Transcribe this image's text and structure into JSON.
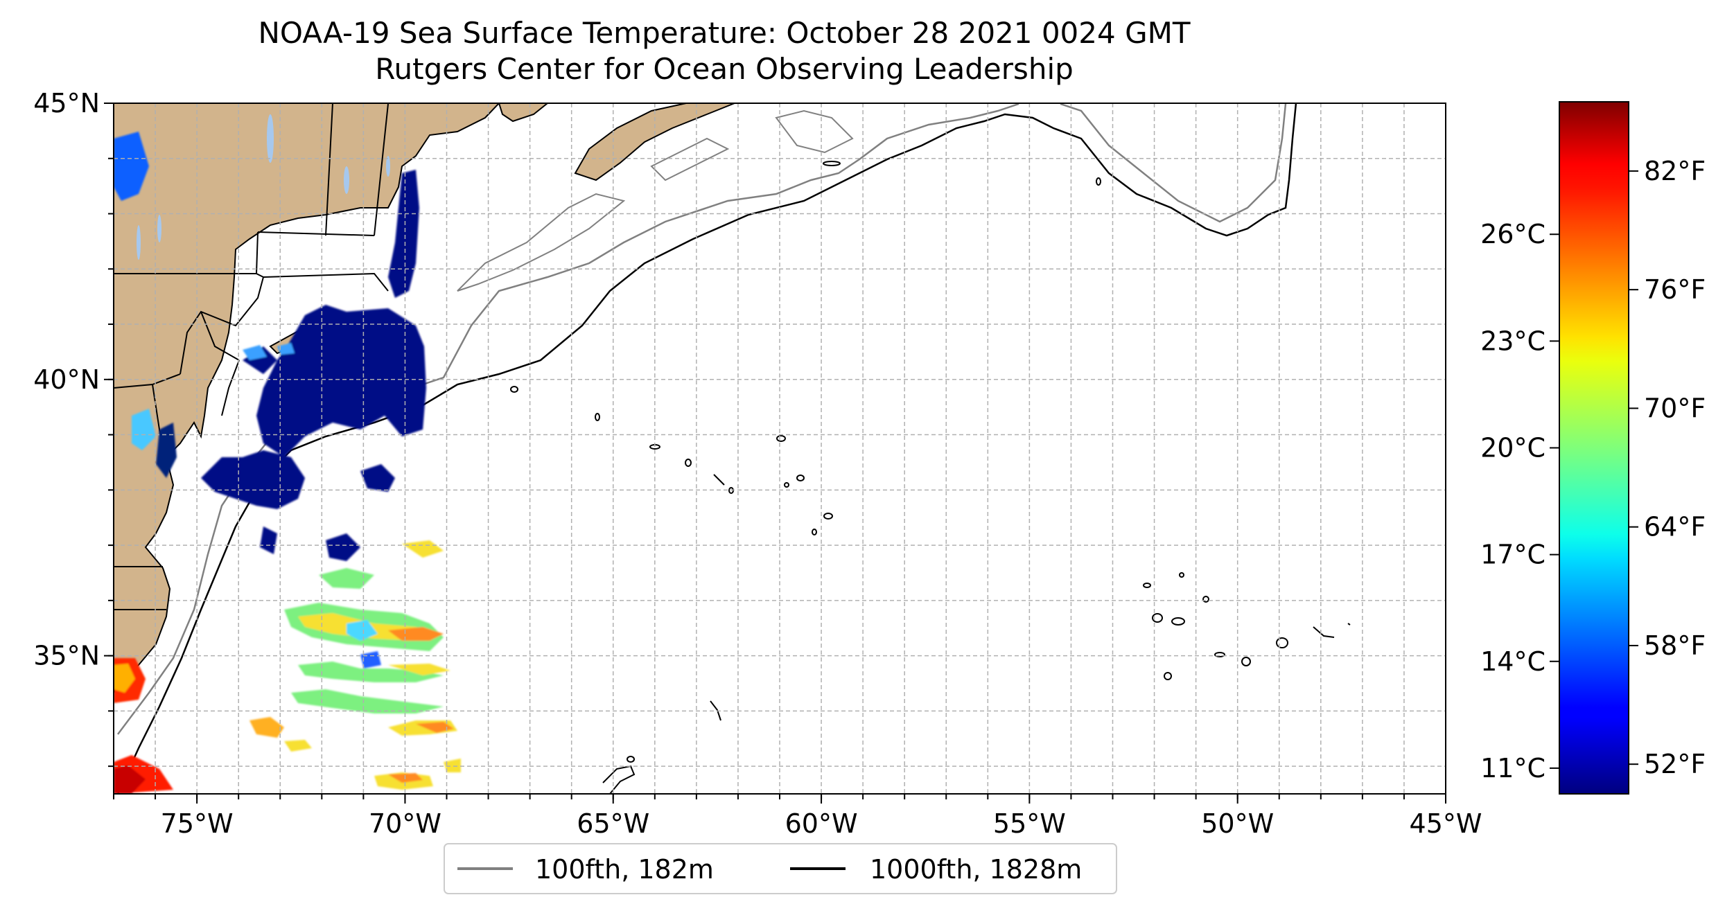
{
  "title": {
    "line1": "NOAA-19 Sea Surface Temperature: October 28 2021 0024 GMT",
    "line2": "Rutgers Center for Ocean Observing Leadership"
  },
  "map": {
    "lon_range": [
      -77,
      -45
    ],
    "lat_range": [
      32.5,
      45
    ],
    "lon_ticks": [
      {
        "lon": -75,
        "label": "75°W"
      },
      {
        "lon": -70,
        "label": "70°W"
      },
      {
        "lon": -65,
        "label": "65°W"
      },
      {
        "lon": -60,
        "label": "60°W"
      },
      {
        "lon": -55,
        "label": "55°W"
      },
      {
        "lon": -50,
        "label": "50°W"
      },
      {
        "lon": -45,
        "label": "45°W"
      }
    ],
    "lat_ticks": [
      {
        "lat": 35,
        "label": "35°N"
      },
      {
        "lat": 40,
        "label": "40°N"
      },
      {
        "lat": 45,
        "label": "45°N"
      }
    ],
    "land_color": "#d2b48c",
    "lake_color": "#a6c8ee",
    "grid": true
  },
  "colorbar": {
    "colormap": "jet",
    "range_f": [
      50.5,
      85.5
    ],
    "celsius_ticks": [
      {
        "value_c": 11,
        "label": "11°C"
      },
      {
        "value_c": 14,
        "label": "14°C"
      },
      {
        "value_c": 17,
        "label": "17°C"
      },
      {
        "value_c": 20,
        "label": "20°C"
      },
      {
        "value_c": 23,
        "label": "23°C"
      },
      {
        "value_c": 26,
        "label": "26°C"
      }
    ],
    "fahrenheit_ticks": [
      {
        "value_f": 52,
        "label": "52°F"
      },
      {
        "value_f": 58,
        "label": "58°F"
      },
      {
        "value_f": 64,
        "label": "64°F"
      },
      {
        "value_f": 70,
        "label": "70°F"
      },
      {
        "value_f": 76,
        "label": "76°F"
      },
      {
        "value_f": 82,
        "label": "82°F"
      }
    ]
  },
  "legend": {
    "items": [
      {
        "label": "100fth, 182m",
        "color": "#808080"
      },
      {
        "label": "1000fth, 1828m",
        "color": "#000000"
      }
    ]
  }
}
